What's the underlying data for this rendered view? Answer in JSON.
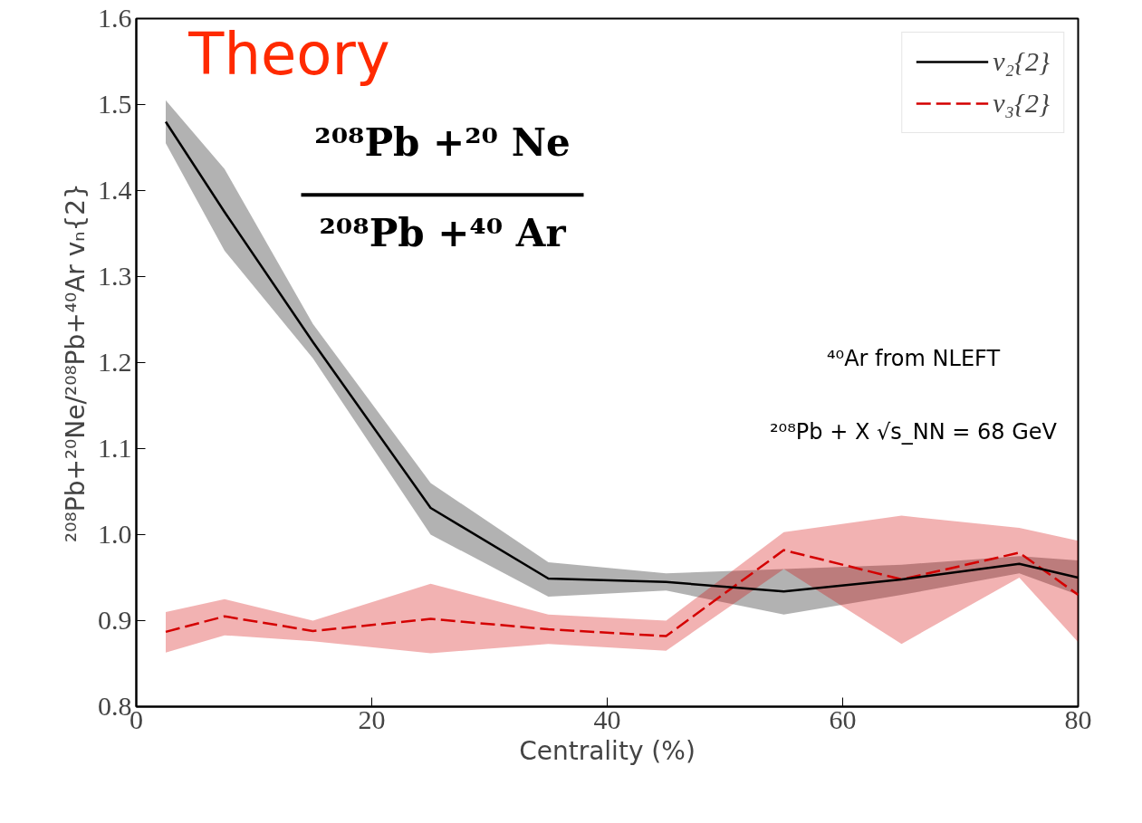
{
  "chart_data": {
    "type": "line",
    "xlabel": "Centrality (%)",
    "ylabel": "²⁰⁸Pb+²⁰Ne/²⁰⁸Pb+⁴⁰Ar vₙ{2}",
    "x": [
      2.5,
      7.5,
      15,
      25,
      35,
      45,
      55,
      65,
      75,
      80
    ],
    "series": [
      {
        "name": "v₂{2}",
        "color": "#000000",
        "line_style": "solid",
        "values": [
          1.48,
          1.375,
          1.224,
          1.031,
          0.949,
          0.945,
          0.934,
          0.948,
          0.966,
          0.95
        ],
        "lower": [
          1.455,
          1.33,
          1.205,
          1.0,
          0.928,
          0.935,
          0.907,
          0.93,
          0.955,
          0.93
        ],
        "upper": [
          1.505,
          1.425,
          1.245,
          1.06,
          0.968,
          0.955,
          0.96,
          0.965,
          0.975,
          0.97
        ]
      },
      {
        "name": "v₃{2}",
        "color": "#d40000",
        "line_style": "dashed",
        "values": [
          0.887,
          0.905,
          0.888,
          0.902,
          0.89,
          0.882,
          0.982,
          0.948,
          0.979,
          0.93
        ],
        "lower": [
          0.863,
          0.883,
          0.876,
          0.862,
          0.873,
          0.865,
          0.96,
          0.873,
          0.95,
          0.875
        ],
        "upper": [
          0.91,
          0.925,
          0.9,
          0.943,
          0.907,
          0.9,
          1.003,
          1.022,
          1.008,
          0.993
        ]
      }
    ],
    "xlim": [
      0,
      80
    ],
    "xticks": [
      0,
      20,
      40,
      60,
      80
    ],
    "ylim": [
      0.8,
      1.6
    ],
    "yticks": [
      0.8,
      0.9,
      {
        "value": 1.0,
        "label": "1.0"
      },
      1.1,
      1.2,
      1.3,
      1.4,
      1.5,
      1.6
    ],
    "grid": false,
    "legend": "top right",
    "marker": "none",
    "annotations": [
      "Theory",
      "²⁰⁸Pb +²⁰ Ne",
      "²⁰⁸Pb +⁴⁰ Ar",
      "⁴⁰Ar from NLEFT",
      "²⁰⁸Pb + X √s_NN = 68 GeV"
    ]
  }
}
